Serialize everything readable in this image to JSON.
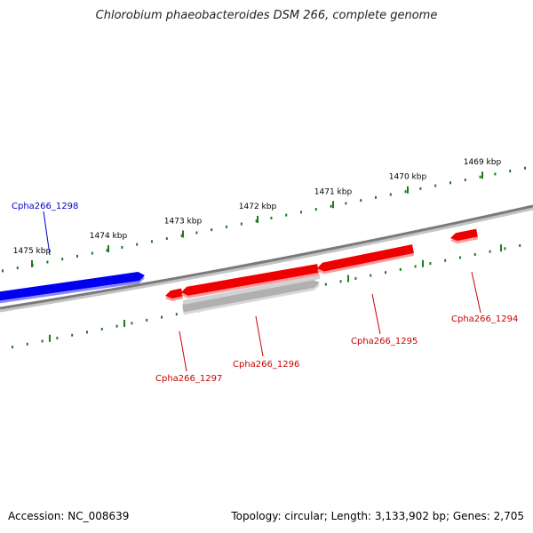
{
  "title": "Chlorobium phaeobacteroides DSM 266, complete genome",
  "footer": {
    "accession": "Accession: NC_008639",
    "topology": "Topology: circular; Length: 3,133,902 bp; Genes: 2,705"
  },
  "colors": {
    "forward_gene": "#0000ee",
    "reverse_gene": "#ee0000",
    "pseudo_gene": "#b0b0b0",
    "backbone": "#808080",
    "tick": "#1a7a1a",
    "forward_label": "#0000cc",
    "reverse_label": "#cc0000"
  },
  "ticks": {
    "outer_labels": [
      "1475 kbp",
      "1474 kbp",
      "1473 kbp",
      "1472 kbp",
      "1471 kbp",
      "1470 kbp",
      "1469 kbp"
    ]
  },
  "genes": [
    {
      "label": "Cpha266_1298",
      "strand": "forward"
    },
    {
      "label": "Cpha266_1297",
      "strand": "reverse"
    },
    {
      "label": "Cpha266_1296",
      "strand": "reverse"
    },
    {
      "label": "Cpha266_1295",
      "strand": "reverse"
    },
    {
      "label": "Cpha266_1294",
      "strand": "reverse"
    }
  ]
}
